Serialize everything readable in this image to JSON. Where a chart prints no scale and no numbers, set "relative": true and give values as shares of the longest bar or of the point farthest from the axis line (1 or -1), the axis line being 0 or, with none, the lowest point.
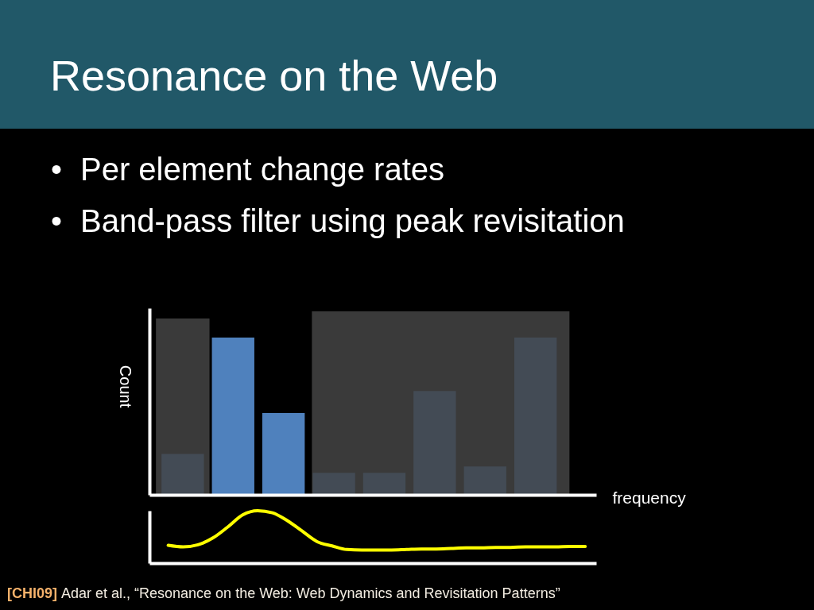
{
  "chart_data": [
    {
      "type": "bar",
      "title": "Resonance on the Web",
      "annotations": [
        "• Per element change rates",
        "• Band-pass filter using peak revisitation"
      ],
      "xlabel": "frequency",
      "ylabel": "Count",
      "relative": true,
      "categories": [
        null,
        null,
        null,
        null,
        null,
        null,
        null,
        null
      ],
      "values": [
        0.26,
        1.0,
        0.52,
        0.14,
        0.14,
        0.66,
        0.18,
        1.0
      ],
      "colors": [
        "#434b55",
        "#4f81bd",
        "#4f81bd",
        "#434b55",
        "#434b55",
        "#434b55",
        "#434b55",
        "#434b55"
      ]
    },
    {
      "type": "line",
      "relative": true,
      "line_style": "solid",
      "annotations": [
        "[CHI09] Adar et al., “Resonance on the Web: Web Dynamics and Revisitation Patterns”"
      ],
      "categories": [
        null,
        null,
        null,
        null,
        null,
        null,
        null,
        null,
        null,
        null,
        null,
        null,
        null,
        null,
        null,
        null,
        null,
        null,
        null,
        null,
        null,
        null,
        null,
        null,
        null,
        null,
        null,
        null,
        null
      ],
      "series": [
        {
          "color": "#ffff00",
          "values": [
            0.34,
            0.31,
            0.35,
            0.48,
            0.69,
            0.92,
            1.0,
            0.96,
            0.81,
            0.61,
            0.41,
            0.33,
            0.26,
            0.25,
            0.25,
            0.25,
            0.26,
            0.27,
            0.27,
            0.28,
            0.29,
            0.29,
            0.3,
            0.3,
            0.31,
            0.31,
            0.31,
            0.32,
            0.32
          ]
        }
      ]
    }
  ]
}
